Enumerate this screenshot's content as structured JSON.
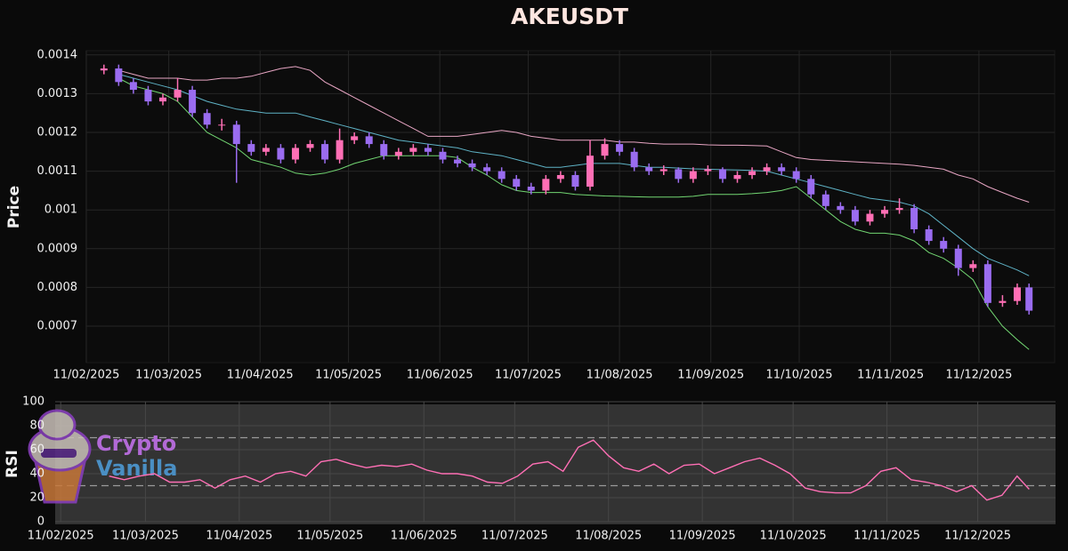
{
  "chart_data": [
    {
      "type": "candlestick",
      "title": "AKEUSDT",
      "ylabel": "Price",
      "x": [
        "2025-02-17",
        "2025-02-22",
        "2025-02-27",
        "2025-03-04",
        "2025-03-09",
        "2025-03-14",
        "2025-03-19",
        "2025-03-24",
        "2025-03-29",
        "2025-04-03",
        "2025-04-08",
        "2025-04-13",
        "2025-04-18",
        "2025-04-23",
        "2025-04-28",
        "2025-05-03",
        "2025-05-08",
        "2025-05-13",
        "2025-05-18",
        "2025-05-23",
        "2025-05-28",
        "2025-06-02",
        "2025-06-07",
        "2025-06-12",
        "2025-06-17",
        "2025-06-22",
        "2025-06-27",
        "2025-07-02",
        "2025-07-07",
        "2025-07-12",
        "2025-07-17",
        "2025-07-22",
        "2025-07-27",
        "2025-08-01",
        "2025-08-06",
        "2025-08-11",
        "2025-08-16",
        "2025-08-21",
        "2025-08-26",
        "2025-08-31",
        "2025-09-05",
        "2025-09-10",
        "2025-09-15",
        "2025-09-20",
        "2025-09-25",
        "2025-09-30",
        "2025-10-05",
        "2025-10-10",
        "2025-10-15",
        "2025-10-20",
        "2025-10-25",
        "2025-10-30",
        "2025-11-04",
        "2025-11-09",
        "2025-11-14",
        "2025-11-19",
        "2025-11-24",
        "2025-11-29",
        "2025-12-04",
        "2025-12-09",
        "2025-12-14",
        "2025-12-19",
        "2025-12-24",
        "2025-12-28"
      ],
      "open": [
        0.00136,
        0.001365,
        0.00133,
        0.00131,
        0.00128,
        0.00129,
        0.00131,
        0.00125,
        0.00122,
        0.00122,
        0.00117,
        0.00115,
        0.00116,
        0.00113,
        0.00116,
        0.00117,
        0.00113,
        0.00118,
        0.00119,
        0.00117,
        0.00114,
        0.00115,
        0.00116,
        0.00115,
        0.00113,
        0.00112,
        0.00111,
        0.0011,
        0.00108,
        0.00106,
        0.00105,
        0.00108,
        0.00109,
        0.00106,
        0.00114,
        0.00117,
        0.00115,
        0.00111,
        0.0011,
        0.001105,
        0.00108,
        0.0011,
        0.001105,
        0.00108,
        0.00109,
        0.0011,
        0.00111,
        0.0011,
        0.00108,
        0.00104,
        0.00101,
        0.001,
        0.00097,
        0.00099,
        0.001,
        0.001005,
        0.00095,
        0.00092,
        0.0009,
        0.00085,
        0.00086,
        0.00076,
        0.000765,
        0.0008
      ],
      "high": [
        0.001375,
        0.001375,
        0.00134,
        0.00132,
        0.0013,
        0.00134,
        0.00132,
        0.00126,
        0.001235,
        0.00123,
        0.00118,
        0.00117,
        0.00117,
        0.00117,
        0.00118,
        0.00118,
        0.00121,
        0.0012,
        0.0012,
        0.00118,
        0.00116,
        0.00117,
        0.00117,
        0.00116,
        0.00114,
        0.00113,
        0.00112,
        0.00111,
        0.00109,
        0.00107,
        0.00109,
        0.0011,
        0.0011,
        0.00118,
        0.001185,
        0.00118,
        0.00116,
        0.00112,
        0.001115,
        0.00111,
        0.00111,
        0.001115,
        0.00111,
        0.0011,
        0.00111,
        0.00112,
        0.00112,
        0.00111,
        0.00109,
        0.00105,
        0.00102,
        0.00101,
        0.001,
        0.00101,
        0.00103,
        0.001015,
        0.00096,
        0.00093,
        0.00091,
        0.00087,
        0.00087,
        0.00078,
        0.00081,
        0.00081
      ],
      "low": [
        0.00135,
        0.00132,
        0.0013,
        0.00127,
        0.00127,
        0.00128,
        0.00124,
        0.00121,
        0.001205,
        0.00107,
        0.00114,
        0.00114,
        0.00112,
        0.00112,
        0.00115,
        0.00112,
        0.00112,
        0.00117,
        0.00116,
        0.00113,
        0.00113,
        0.00114,
        0.00114,
        0.00112,
        0.00111,
        0.0011,
        0.00109,
        0.00107,
        0.00105,
        0.00104,
        0.00104,
        0.00107,
        0.00105,
        0.00105,
        0.00113,
        0.00114,
        0.0011,
        0.00109,
        0.00109,
        0.00107,
        0.00107,
        0.00109,
        0.00107,
        0.00107,
        0.00108,
        0.00109,
        0.00109,
        0.00107,
        0.00103,
        0.001,
        0.00099,
        0.00096,
        0.00096,
        0.00098,
        0.00099,
        0.00094,
        0.00091,
        0.00089,
        0.00083,
        0.00084,
        0.00075,
        0.00075,
        0.000755,
        0.00073
      ],
      "close": [
        0.001365,
        0.00133,
        0.00131,
        0.00128,
        0.00129,
        0.00131,
        0.00125,
        0.00122,
        0.00122,
        0.00117,
        0.00115,
        0.00116,
        0.00113,
        0.00116,
        0.00117,
        0.00113,
        0.00118,
        0.00119,
        0.00117,
        0.00114,
        0.00115,
        0.00116,
        0.00115,
        0.00113,
        0.00112,
        0.00111,
        0.0011,
        0.00108,
        0.00106,
        0.00105,
        0.00108,
        0.00109,
        0.00106,
        0.00114,
        0.00117,
        0.00115,
        0.00111,
        0.0011,
        0.001105,
        0.00108,
        0.0011,
        0.001105,
        0.00108,
        0.00109,
        0.0011,
        0.00111,
        0.0011,
        0.00108,
        0.00104,
        0.00101,
        0.001,
        0.00097,
        0.00099,
        0.001,
        0.001005,
        0.00095,
        0.00092,
        0.0009,
        0.00085,
        0.00086,
        0.00076,
        0.000765,
        0.0008,
        0.00074
      ],
      "up_color": "#ff6fb5",
      "down_color": "#9a6cf0",
      "overlays": [
        {
          "color": "#e8a6c4",
          "values": [
            null,
            0.00136,
            0.00135,
            0.00134,
            0.00134,
            0.00134,
            0.001335,
            0.001335,
            0.00134,
            0.00134,
            0.001345,
            0.001355,
            0.001365,
            0.00137,
            0.00136,
            0.00133,
            0.00131,
            0.00129,
            0.00127,
            0.00125,
            0.00123,
            0.00121,
            0.00119,
            0.00119,
            0.00119,
            0.001195,
            0.0012,
            0.001205,
            0.0012,
            0.00119,
            0.001185,
            0.00118,
            0.00118,
            0.00118,
            0.00118,
            0.001175,
            0.001175,
            0.001172,
            0.00117,
            0.00117,
            0.00117,
            0.001168,
            0.001167,
            0.001167,
            0.001166,
            0.001165,
            0.00115,
            0.001135,
            0.00113,
            0.001128,
            0.001126,
            0.001124,
            0.001122,
            0.00112,
            0.001118,
            0.001115,
            0.00111,
            0.001105,
            0.00109,
            0.00108,
            0.00106,
            0.001045,
            0.00103,
            0.00102
          ]
        },
        {
          "color": "#5fb3c6",
          "values": [
            null,
            0.00135,
            0.00134,
            0.00133,
            0.00132,
            0.00131,
            0.001295,
            0.00128,
            0.00127,
            0.00126,
            0.001255,
            0.00125,
            0.00125,
            0.00125,
            0.00124,
            0.00123,
            0.00122,
            0.00121,
            0.0012,
            0.00119,
            0.00118,
            0.001175,
            0.00117,
            0.001165,
            0.00116,
            0.00115,
            0.001145,
            0.00114,
            0.00113,
            0.00112,
            0.00111,
            0.00111,
            0.001115,
            0.00112,
            0.00112,
            0.00112,
            0.001115,
            0.00111,
            0.00111,
            0.001108,
            0.001106,
            0.001105,
            0.001104,
            0.001103,
            0.001102,
            0.0011,
            0.00109,
            0.00108,
            0.00107,
            0.00106,
            0.00105,
            0.00104,
            0.00103,
            0.001025,
            0.00102,
            0.00101,
            0.00099,
            0.00096,
            0.00093,
            0.0009,
            0.000875,
            0.00086,
            0.000845,
            0.00083
          ]
        },
        {
          "color": "#72d672",
          "values": [
            null,
            0.00134,
            0.00132,
            0.00131,
            0.0013,
            0.00128,
            0.00124,
            0.0012,
            0.00118,
            0.00116,
            0.00113,
            0.00112,
            0.00111,
            0.001095,
            0.00109,
            0.001095,
            0.001105,
            0.00112,
            0.00113,
            0.00114,
            0.00114,
            0.00114,
            0.00114,
            0.00114,
            0.001135,
            0.00111,
            0.00109,
            0.001065,
            0.00105,
            0.001045,
            0.001045,
            0.001045,
            0.00104,
            0.001038,
            0.001036,
            0.001035,
            0.001034,
            0.001033,
            0.001033,
            0.001033,
            0.001035,
            0.00104,
            0.00104,
            0.00104,
            0.001042,
            0.001045,
            0.00105,
            0.00106,
            0.00103,
            0.001,
            0.00097,
            0.00095,
            0.00094,
            0.00094,
            0.000935,
            0.00092,
            0.00089,
            0.000875,
            0.00085,
            0.00082,
            0.00075,
            0.0007,
            0.000665,
            0.00064
          ]
        }
      ],
      "xlim": [
        "2025-02-08",
        "2026-01-06"
      ],
      "xticks": [
        {
          "value": "2025-02-11",
          "label": "11/02/2025"
        },
        {
          "value": "2025-03-11",
          "label": "11/03/2025"
        },
        {
          "value": "2025-04-11",
          "label": "11/04/2025"
        },
        {
          "value": "2025-05-11",
          "label": "11/05/2025"
        },
        {
          "value": "2025-06-11",
          "label": "11/06/2025"
        },
        {
          "value": "2025-07-11",
          "label": "11/07/2025"
        },
        {
          "value": "2025-08-11",
          "label": "11/08/2025"
        },
        {
          "value": "2025-09-11",
          "label": "11/09/2025"
        },
        {
          "value": "2025-10-11",
          "label": "11/10/2025"
        },
        {
          "value": "2025-11-11",
          "label": "11/11/2025"
        },
        {
          "value": "2025-12-11",
          "label": "11/12/2025"
        }
      ],
      "ylim": [
        0.000606,
        0.001411
      ],
      "yticks": [
        0.0007,
        0.0008,
        0.0009,
        0.001,
        0.0011,
        0.0012,
        0.0013,
        0.0014
      ],
      "grid": true
    },
    {
      "type": "line",
      "ylabel": "RSI",
      "watermark": [
        "Crypto",
        "Vanilla"
      ],
      "x": [
        "2025-02-17",
        "2025-02-22",
        "2025-02-27",
        "2025-03-04",
        "2025-03-09",
        "2025-03-14",
        "2025-03-19",
        "2025-03-24",
        "2025-03-29",
        "2025-04-03",
        "2025-04-08",
        "2025-04-13",
        "2025-04-18",
        "2025-04-23",
        "2025-04-28",
        "2025-05-03",
        "2025-05-08",
        "2025-05-13",
        "2025-05-18",
        "2025-05-23",
        "2025-05-28",
        "2025-06-02",
        "2025-06-07",
        "2025-06-12",
        "2025-06-17",
        "2025-06-22",
        "2025-06-27",
        "2025-07-02",
        "2025-07-07",
        "2025-07-12",
        "2025-07-17",
        "2025-07-22",
        "2025-07-27",
        "2025-08-01",
        "2025-08-06",
        "2025-08-11",
        "2025-08-16",
        "2025-08-21",
        "2025-08-26",
        "2025-08-31",
        "2025-09-05",
        "2025-09-10",
        "2025-09-15",
        "2025-09-20",
        "2025-09-25",
        "2025-09-30",
        "2025-10-05",
        "2025-10-10",
        "2025-10-15",
        "2025-10-20",
        "2025-10-25",
        "2025-10-30",
        "2025-11-04",
        "2025-11-09",
        "2025-11-14",
        "2025-11-19",
        "2025-11-24",
        "2025-11-29",
        "2025-12-04",
        "2025-12-09",
        "2025-12-14",
        "2025-12-19",
        "2025-12-24",
        "2025-12-28"
      ],
      "values": [
        null,
        null,
        38,
        35,
        38,
        40,
        33,
        33,
        35,
        28,
        35,
        38,
        33,
        40,
        42,
        38,
        50,
        52,
        48,
        45,
        47,
        46,
        48,
        43,
        40,
        40,
        38,
        33,
        32,
        38,
        48,
        50,
        42,
        62,
        68,
        55,
        45,
        42,
        48,
        40,
        47,
        48,
        40,
        45,
        50,
        53,
        47,
        40,
        28,
        25,
        24,
        24,
        30,
        42,
        45,
        35,
        33,
        30,
        25,
        30,
        18,
        22,
        38,
        27
      ],
      "color": "#ff6fb5",
      "hlines": [
        70,
        30
      ],
      "xlim": [
        "2025-02-08",
        "2026-01-06"
      ],
      "xticks": [
        {
          "value": "2025-02-11",
          "label": "11/02/2025"
        },
        {
          "value": "2025-03-11",
          "label": "11/03/2025"
        },
        {
          "value": "2025-04-11",
          "label": "11/04/2025"
        },
        {
          "value": "2025-05-11",
          "label": "11/05/2025"
        },
        {
          "value": "2025-06-11",
          "label": "11/06/2025"
        },
        {
          "value": "2025-07-11",
          "label": "11/07/2025"
        },
        {
          "value": "2025-08-11",
          "label": "11/08/2025"
        },
        {
          "value": "2025-09-11",
          "label": "11/09/2025"
        },
        {
          "value": "2025-10-11",
          "label": "11/10/2025"
        },
        {
          "value": "2025-11-11",
          "label": "11/11/2025"
        },
        {
          "value": "2025-12-11",
          "label": "11/12/2025"
        }
      ],
      "ylim": [
        0,
        100
      ],
      "yticks": [
        0,
        20,
        40,
        60,
        80,
        100
      ],
      "grid": true
    }
  ]
}
